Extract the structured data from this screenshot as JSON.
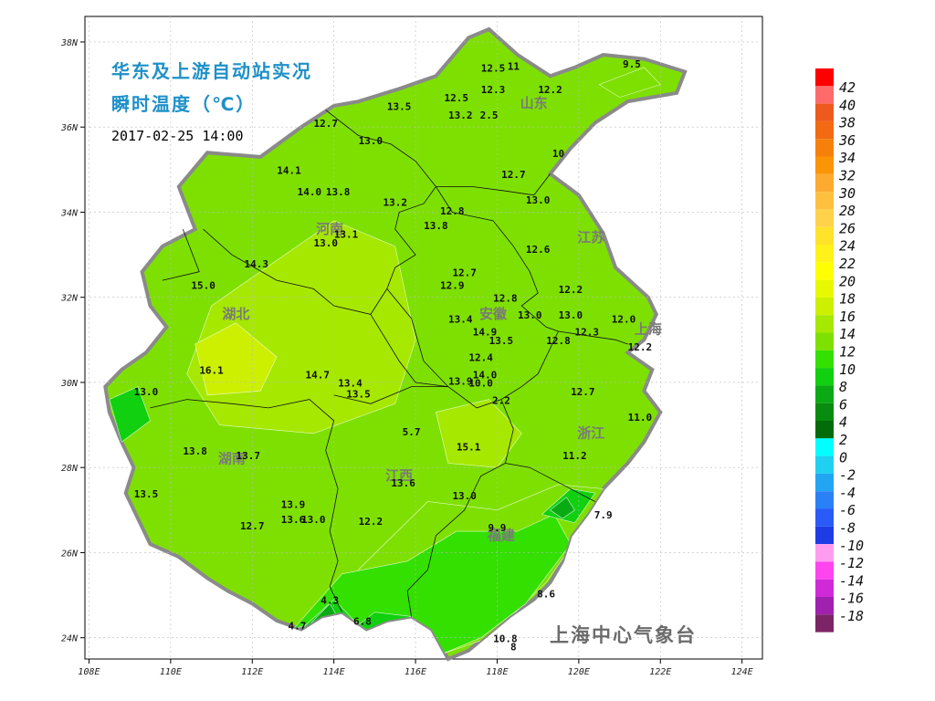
{
  "title_line1": "华东及上游自动站实况",
  "title_line2": "瞬时温度（℃）",
  "timestamp": "2017-02-25 14:00",
  "credit": "上海中心气象台",
  "axes": {
    "lat_ticks": [
      "38N",
      "36N",
      "34N",
      "32N",
      "30N",
      "28N",
      "26N",
      "24N"
    ],
    "lon_ticks": [
      "108E",
      "110E",
      "112E",
      "114E",
      "116E",
      "118E",
      "120E",
      "122E",
      "124E"
    ],
    "lat_range": [
      23.5,
      38.6
    ],
    "lon_range": [
      107.9,
      124.5
    ]
  },
  "legend": {
    "levels": [
      {
        "label": "42",
        "color": "#ff0000"
      },
      {
        "label": "40",
        "color": "#ff6a6a"
      },
      {
        "label": "38",
        "color": "#ee5a1e"
      },
      {
        "label": "36",
        "color": "#f36a12"
      },
      {
        "label": "34",
        "color": "#f7800a"
      },
      {
        "label": "32",
        "color": "#fb9407"
      },
      {
        "label": "30",
        "color": "#fdaa30"
      },
      {
        "label": "28",
        "color": "#ffc040"
      },
      {
        "label": "26",
        "color": "#ffd24a"
      },
      {
        "label": "24",
        "color": "#ffe22a"
      },
      {
        "label": "22",
        "color": "#fff21a"
      },
      {
        "label": "20",
        "color": "#ffff00"
      },
      {
        "label": "18",
        "color": "#e8f800"
      },
      {
        "label": "16",
        "color": "#ccf000"
      },
      {
        "label": "14",
        "color": "#a6e800"
      },
      {
        "label": "12",
        "color": "#7ee000"
      },
      {
        "label": "10",
        "color": "#33e000"
      },
      {
        "label": "8",
        "color": "#10d010"
      },
      {
        "label": "6",
        "color": "#0aaa14"
      },
      {
        "label": "4",
        "color": "#078c10"
      },
      {
        "label": "2",
        "color": "#036c0a"
      },
      {
        "label": "0",
        "color": "#00ffff"
      },
      {
        "label": "-2",
        "color": "#20d0f0"
      },
      {
        "label": "-4",
        "color": "#22a6f4"
      },
      {
        "label": "-6",
        "color": "#2a80f6"
      },
      {
        "label": "-8",
        "color": "#2a5af8"
      },
      {
        "label": "-10",
        "color": "#1e3ce6"
      },
      {
        "label": "-12",
        "color": "#ff9cf0"
      },
      {
        "label": "-14",
        "color": "#ff44f0"
      },
      {
        "label": "-16",
        "color": "#d02ad8"
      },
      {
        "label": "-18",
        "color": "#a020b0"
      },
      {
        "label": "",
        "color": "#7c2466"
      }
    ]
  },
  "provinces": [
    {
      "name": "山东",
      "lon": 118.9,
      "lat": 36.45
    },
    {
      "name": "河南",
      "lon": 113.9,
      "lat": 33.5
    },
    {
      "name": "江苏",
      "lon": 120.3,
      "lat": 33.3
    },
    {
      "name": "安徽",
      "lon": 117.9,
      "lat": 31.5
    },
    {
      "name": "湖北",
      "lon": 111.6,
      "lat": 31.5
    },
    {
      "name": "浙江",
      "lon": 120.3,
      "lat": 28.7
    },
    {
      "name": "湖南",
      "lon": 111.5,
      "lat": 28.1
    },
    {
      "name": "江西",
      "lon": 115.6,
      "lat": 27.7
    },
    {
      "name": "福建",
      "lon": 118.1,
      "lat": 26.3
    },
    {
      "name": "上海",
      "lon": 121.7,
      "lat": 31.15
    }
  ],
  "stations": [
    {
      "value": "12.5",
      "lon": 117.9,
      "lat": 37.3
    },
    {
      "value": "11",
      "lon": 118.4,
      "lat": 37.35
    },
    {
      "value": "9.5",
      "lon": 121.3,
      "lat": 37.4
    },
    {
      "value": "12.3",
      "lon": 117.9,
      "lat": 36.8
    },
    {
      "value": "12.2",
      "lon": 119.3,
      "lat": 36.8
    },
    {
      "value": "13.5",
      "lon": 115.6,
      "lat": 36.4
    },
    {
      "value": "12.5",
      "lon": 117.0,
      "lat": 36.6
    },
    {
      "value": "13.2",
      "lon": 117.1,
      "lat": 36.2
    },
    {
      "value": "2.5",
      "lon": 117.8,
      "lat": 36.2
    },
    {
      "value": "12.7",
      "lon": 113.8,
      "lat": 36.0
    },
    {
      "value": "13.0",
      "lon": 114.9,
      "lat": 35.6
    },
    {
      "value": "10",
      "lon": 119.5,
      "lat": 35.3
    },
    {
      "value": "14.1",
      "lon": 112.9,
      "lat": 34.9
    },
    {
      "value": "12.7",
      "lon": 118.4,
      "lat": 34.8
    },
    {
      "value": "14.0",
      "lon": 113.4,
      "lat": 34.4
    },
    {
      "value": "13.8",
      "lon": 114.1,
      "lat": 34.4
    },
    {
      "value": "13.0",
      "lon": 119.0,
      "lat": 34.2
    },
    {
      "value": "13.2",
      "lon": 115.5,
      "lat": 34.15
    },
    {
      "value": "12.8",
      "lon": 116.9,
      "lat": 33.95
    },
    {
      "value": "13.8",
      "lon": 116.5,
      "lat": 33.6
    },
    {
      "value": "13.1",
      "lon": 114.3,
      "lat": 33.4
    },
    {
      "value": "13.0",
      "lon": 113.8,
      "lat": 33.2
    },
    {
      "value": "12.6",
      "lon": 119.0,
      "lat": 33.05
    },
    {
      "value": "14.3",
      "lon": 112.1,
      "lat": 32.7
    },
    {
      "value": "12.7",
      "lon": 117.2,
      "lat": 32.5
    },
    {
      "value": "15.0",
      "lon": 110.8,
      "lat": 32.2
    },
    {
      "value": "12.9",
      "lon": 116.9,
      "lat": 32.2
    },
    {
      "value": "12.2",
      "lon": 119.8,
      "lat": 32.1
    },
    {
      "value": "12.8",
      "lon": 118.2,
      "lat": 31.9
    },
    {
      "value": "12.0",
      "lon": 121.1,
      "lat": 31.4
    },
    {
      "value": "13.0",
      "lon": 118.8,
      "lat": 31.5
    },
    {
      "value": "13.0",
      "lon": 119.8,
      "lat": 31.5
    },
    {
      "value": "13.4",
      "lon": 117.1,
      "lat": 31.4
    },
    {
      "value": "14.9",
      "lon": 117.7,
      "lat": 31.1
    },
    {
      "value": "12.3",
      "lon": 120.2,
      "lat": 31.1
    },
    {
      "value": "13.5",
      "lon": 118.1,
      "lat": 30.9
    },
    {
      "value": "12.8",
      "lon": 119.5,
      "lat": 30.9
    },
    {
      "value": "12.2",
      "lon": 121.5,
      "lat": 30.75
    },
    {
      "value": "12.4",
      "lon": 117.6,
      "lat": 30.5
    },
    {
      "value": "16.1",
      "lon": 111.0,
      "lat": 30.2
    },
    {
      "value": "14.7",
      "lon": 113.6,
      "lat": 30.1
    },
    {
      "value": "13.4",
      "lon": 114.4,
      "lat": 29.9
    },
    {
      "value": "14.0",
      "lon": 117.7,
      "lat": 30.1
    },
    {
      "value": "13.9",
      "lon": 117.1,
      "lat": 29.95
    },
    {
      "value": "10.0",
      "lon": 117.6,
      "lat": 29.9
    },
    {
      "value": "13.0",
      "lon": 109.4,
      "lat": 29.7
    },
    {
      "value": "13.5",
      "lon": 114.6,
      "lat": 29.65
    },
    {
      "value": "12.7",
      "lon": 120.1,
      "lat": 29.7
    },
    {
      "value": "2.2",
      "lon": 118.1,
      "lat": 29.5
    },
    {
      "value": "11.0",
      "lon": 121.5,
      "lat": 29.1
    },
    {
      "value": "5.7",
      "lon": 115.9,
      "lat": 28.75
    },
    {
      "value": "15.1",
      "lon": 117.3,
      "lat": 28.4
    },
    {
      "value": "13.8",
      "lon": 110.6,
      "lat": 28.3
    },
    {
      "value": "13.7",
      "lon": 111.9,
      "lat": 28.2
    },
    {
      "value": "11.2",
      "lon": 119.9,
      "lat": 28.2
    },
    {
      "value": "13.6",
      "lon": 115.7,
      "lat": 27.55
    },
    {
      "value": "13.5",
      "lon": 109.4,
      "lat": 27.3
    },
    {
      "value": "13.9",
      "lon": 113.0,
      "lat": 27.05
    },
    {
      "value": "13.0",
      "lon": 117.2,
      "lat": 27.25
    },
    {
      "value": "7.9",
      "lon": 120.6,
      "lat": 26.8
    },
    {
      "value": "13.6",
      "lon": 113.0,
      "lat": 26.7
    },
    {
      "value": "13.0",
      "lon": 113.5,
      "lat": 26.7
    },
    {
      "value": "12.7",
      "lon": 112.0,
      "lat": 26.55
    },
    {
      "value": "12.2",
      "lon": 114.9,
      "lat": 26.65
    },
    {
      "value": "9.9",
      "lon": 118.0,
      "lat": 26.5
    },
    {
      "value": "4.3",
      "lon": 113.9,
      "lat": 24.8
    },
    {
      "value": "8.6",
      "lon": 119.2,
      "lat": 24.95
    },
    {
      "value": "4.7",
      "lon": 113.1,
      "lat": 24.2
    },
    {
      "value": "6.8",
      "lon": 114.7,
      "lat": 24.3
    },
    {
      "value": "10.8",
      "lon": 118.2,
      "lat": 23.9
    },
    {
      "value": "8",
      "lon": 118.4,
      "lat": 23.7
    }
  ]
}
